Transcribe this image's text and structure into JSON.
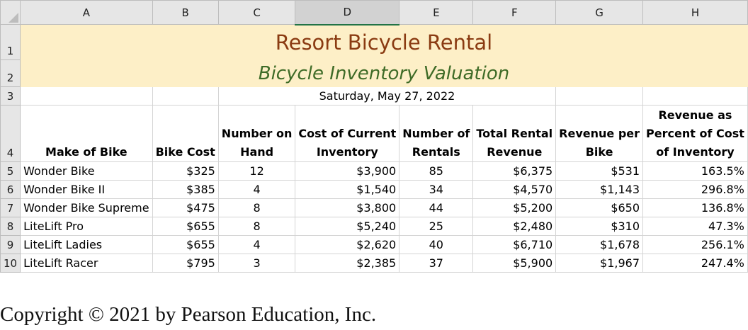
{
  "columns": [
    "A",
    "B",
    "C",
    "D",
    "E",
    "F",
    "G",
    "H"
  ],
  "rows": [
    "1",
    "2",
    "3",
    "4",
    "5",
    "6",
    "7",
    "8",
    "9",
    "10"
  ],
  "title": "Resort Bicycle Rental",
  "subtitle": "Bicycle Inventory Valuation",
  "date": "Saturday, May 27, 2022",
  "headers": {
    "make": "Make of Bike",
    "cost": "Bike Cost",
    "onhand_1": "Number on",
    "onhand_2": "Hand",
    "inventory_1": "Cost of Current",
    "inventory_2": "Inventory",
    "rentals_1": "Number of",
    "rentals_2": "Rentals",
    "revenue_1": "Total Rental",
    "revenue_2": "Revenue",
    "perbike_1": "Revenue per",
    "perbike_2": "Bike",
    "percent_1": "Revenue as",
    "percent_2": "Percent of Cost",
    "percent_3": "of Inventory"
  },
  "bikes": [
    {
      "make": "Wonder Bike",
      "cost": "$325",
      "onhand": "12",
      "inventory": "$3,900",
      "rentals": "85",
      "revenue": "$6,375",
      "perbike": "$531",
      "percent": "163.5%"
    },
    {
      "make": "Wonder Bike II",
      "cost": "$385",
      "onhand": "4",
      "inventory": "$1,540",
      "rentals": "34",
      "revenue": "$4,570",
      "perbike": "$1,143",
      "percent": "296.8%"
    },
    {
      "make": "Wonder Bike Supreme",
      "cost": "$475",
      "onhand": "8",
      "inventory": "$3,800",
      "rentals": "44",
      "revenue": "$5,200",
      "perbike": "$650",
      "percent": "136.8%"
    },
    {
      "make": "LiteLift Pro",
      "cost": "$655",
      "onhand": "8",
      "inventory": "$5,240",
      "rentals": "25",
      "revenue": "$2,480",
      "perbike": "$310",
      "percent": "47.3%"
    },
    {
      "make": "LiteLift Ladies",
      "cost": "$655",
      "onhand": "4",
      "inventory": "$2,620",
      "rentals": "40",
      "revenue": "$6,710",
      "perbike": "$1,678",
      "percent": "256.1%"
    },
    {
      "make": "LiteLift Racer",
      "cost": "$795",
      "onhand": "3",
      "inventory": "$2,385",
      "rentals": "37",
      "revenue": "$5,900",
      "perbike": "$1,967",
      "percent": "247.4%"
    }
  ],
  "copyright": "Copyright © 2021 by Pearson Education, Inc.",
  "colors": {
    "title_fill": "#fdefc7",
    "title_text": "#8a3b12",
    "subtitle_text": "#3e6b27",
    "selection_accent": "#217346"
  }
}
